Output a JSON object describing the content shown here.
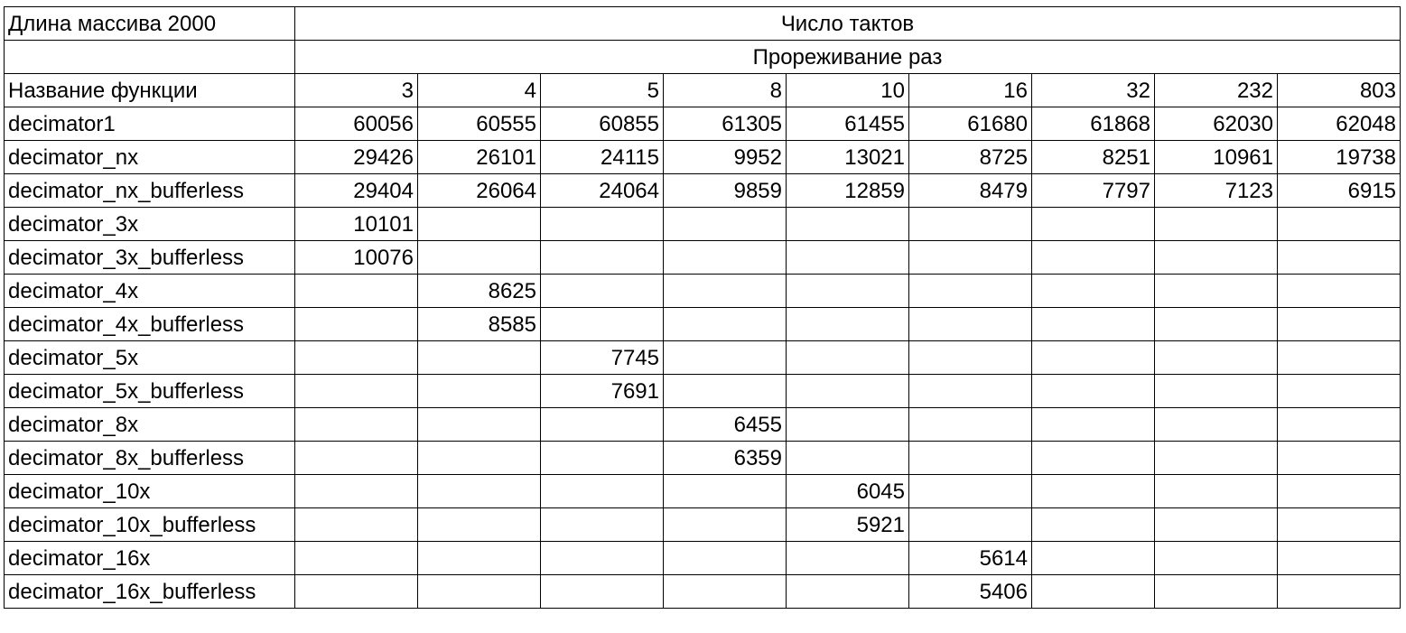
{
  "sheet": {
    "corner_label": "Длина массива 2000",
    "group_header": "Число тактов",
    "sub_header": "Прореживание раз",
    "name_header": "Название функции",
    "factors": [
      "3",
      "4",
      "5",
      "8",
      "10",
      "16",
      "32",
      "232",
      "803"
    ],
    "rows": [
      {
        "name": "decimator1",
        "values": [
          "60056",
          "60555",
          "60855",
          "61305",
          "61455",
          "61680",
          "61868",
          "62030",
          "62048"
        ]
      },
      {
        "name": "decimator_nx",
        "values": [
          "29426",
          "26101",
          "24115",
          "9952",
          "13021",
          "8725",
          "8251",
          "10961",
          "19738"
        ]
      },
      {
        "name": "decimator_nx_bufferless",
        "values": [
          "29404",
          "26064",
          "24064",
          "9859",
          "12859",
          "8479",
          "7797",
          "7123",
          "6915"
        ]
      },
      {
        "name": "decimator_3x",
        "values": [
          "10101",
          "",
          "",
          "",
          "",
          "",
          "",
          "",
          ""
        ]
      },
      {
        "name": "decimator_3x_bufferless",
        "values": [
          "10076",
          "",
          "",
          "",
          "",
          "",
          "",
          "",
          ""
        ]
      },
      {
        "name": "decimator_4x",
        "values": [
          "",
          "8625",
          "",
          "",
          "",
          "",
          "",
          "",
          ""
        ]
      },
      {
        "name": "decimator_4x_bufferless",
        "values": [
          "",
          "8585",
          "",
          "",
          "",
          "",
          "",
          "",
          ""
        ]
      },
      {
        "name": "decimator_5x",
        "values": [
          "",
          "",
          "7745",
          "",
          "",
          "",
          "",
          "",
          ""
        ]
      },
      {
        "name": "decimator_5x_bufferless",
        "values": [
          "",
          "",
          "7691",
          "",
          "",
          "",
          "",
          "",
          ""
        ]
      },
      {
        "name": "decimator_8x",
        "values": [
          "",
          "",
          "",
          "6455",
          "",
          "",
          "",
          "",
          ""
        ]
      },
      {
        "name": "decimator_8x_bufferless",
        "values": [
          "",
          "",
          "",
          "6359",
          "",
          "",
          "",
          "",
          ""
        ]
      },
      {
        "name": "decimator_10x",
        "values": [
          "",
          "",
          "",
          "",
          "6045",
          "",
          "",
          "",
          ""
        ]
      },
      {
        "name": "decimator_10x_bufferless",
        "values": [
          "",
          "",
          "",
          "",
          "5921",
          "",
          "",
          "",
          ""
        ]
      },
      {
        "name": "decimator_16x",
        "values": [
          "",
          "",
          "",
          "",
          "",
          "5614",
          "",
          "",
          ""
        ]
      },
      {
        "name": "decimator_16x_bufferless",
        "values": [
          "",
          "",
          "",
          "",
          "",
          "5406",
          "",
          "",
          ""
        ]
      }
    ]
  }
}
